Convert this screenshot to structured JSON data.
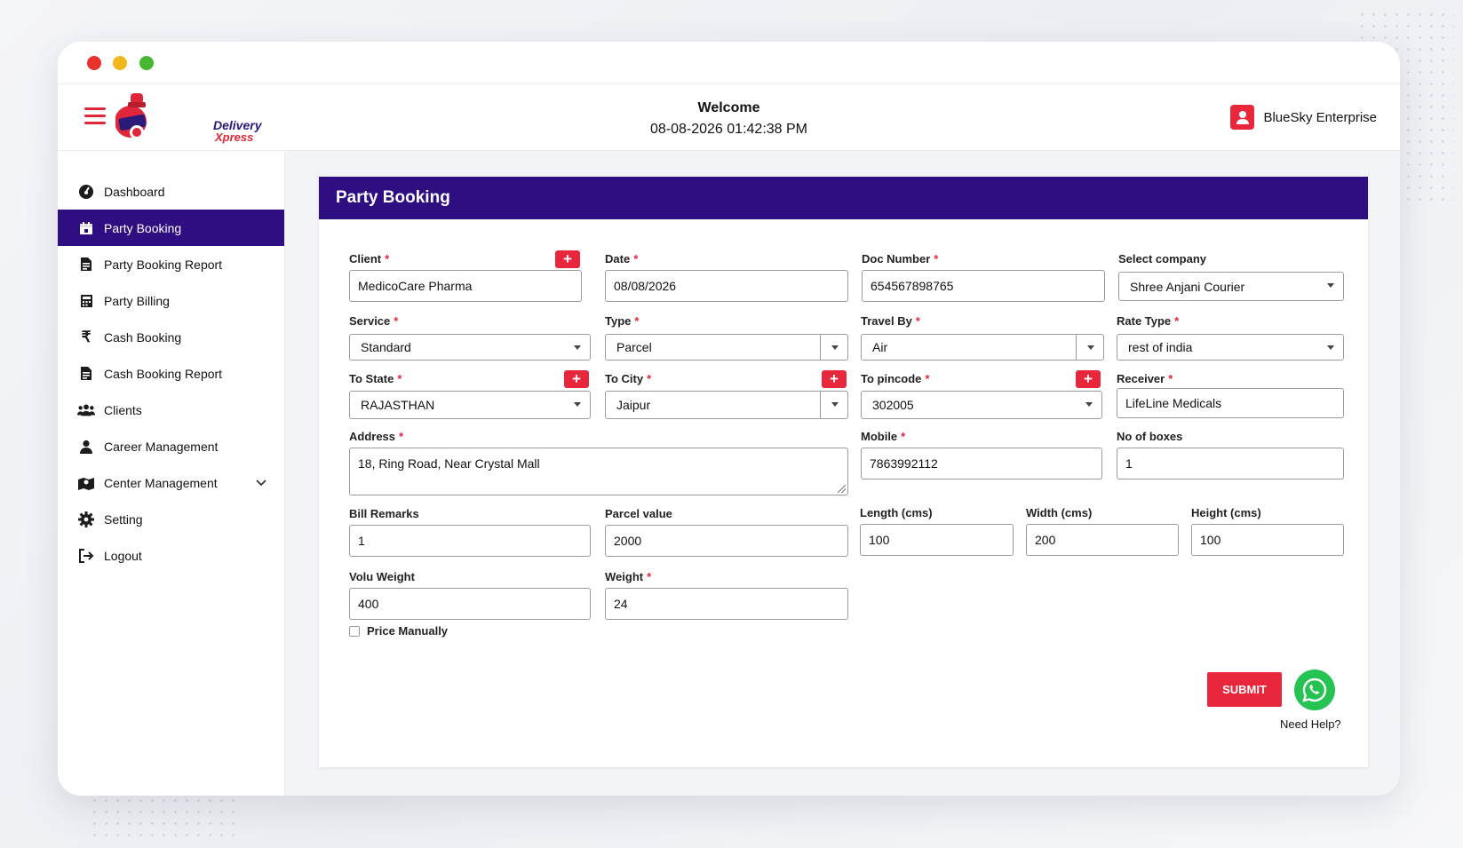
{
  "window_controls": [
    "close",
    "minimize",
    "maximize"
  ],
  "brand": {
    "line1": "Delivery",
    "line2": "Xpress",
    "accent": "#e0263a",
    "primary": "#2e0e80"
  },
  "header": {
    "welcome": "Welcome",
    "datetime": "08-08-2026 01:42:38 PM",
    "company": "BlueSky Enterprise"
  },
  "sidebar": {
    "items": [
      {
        "label": "Dashboard",
        "icon": "dashboard-icon"
      },
      {
        "label": "Party Booking",
        "icon": "calendar-icon",
        "active": true
      },
      {
        "label": "Party Booking Report",
        "icon": "report-icon"
      },
      {
        "label": "Party Billing",
        "icon": "billing-icon"
      },
      {
        "label": "Cash Booking",
        "icon": "rupee-icon"
      },
      {
        "label": "Cash Booking Report",
        "icon": "report-icon"
      },
      {
        "label": "Clients",
        "icon": "users-icon"
      },
      {
        "label": "Career Management",
        "icon": "user-icon"
      },
      {
        "label": "Center Management",
        "icon": "map-icon",
        "expandable": true
      },
      {
        "label": "Setting",
        "icon": "gear-icon"
      },
      {
        "label": "Logout",
        "icon": "logout-icon"
      }
    ]
  },
  "form": {
    "title": "Party Booking",
    "client": {
      "label": "Client",
      "value": "MedicoCare Pharma"
    },
    "date": {
      "label": "Date",
      "value": "08/08/2026"
    },
    "doc_number": {
      "label": "Doc Number",
      "value": "654567898765"
    },
    "select_company": {
      "label": "Select company",
      "value": "Shree Anjani Courier"
    },
    "service": {
      "label": "Service",
      "value": "Standard"
    },
    "type": {
      "label": "Type",
      "value": "Parcel"
    },
    "travel_by": {
      "label": "Travel By",
      "value": "Air"
    },
    "rate_type": {
      "label": "Rate Type",
      "value": "rest of india"
    },
    "to_state": {
      "label": "To State",
      "value": "RAJASTHAN"
    },
    "to_city": {
      "label": "To City",
      "value": "Jaipur"
    },
    "to_pincode": {
      "label": "To pincode",
      "value": "302005"
    },
    "receiver": {
      "label": "Receiver",
      "value": "LifeLine Medicals"
    },
    "address": {
      "label": "Address",
      "value": "18, Ring Road, Near Crystal Mall"
    },
    "mobile": {
      "label": "Mobile",
      "value": "7863992112"
    },
    "no_of_boxes": {
      "label": "No of boxes",
      "value": "1"
    },
    "bill_remarks": {
      "label": "Bill Remarks",
      "value": "1"
    },
    "parcel_value": {
      "label": "Parcel value",
      "value": "2000"
    },
    "length": {
      "label": "Length (cms)",
      "value": "100"
    },
    "width": {
      "label": "Width (cms)",
      "value": "200"
    },
    "height": {
      "label": "Height (cms)",
      "value": "100"
    },
    "volu_weight": {
      "label": "Volu Weight",
      "value": "400"
    },
    "weight": {
      "label": "Weight",
      "value": "24"
    },
    "price_manually": {
      "label": "Price Manually",
      "checked": false
    },
    "required_mark": "*",
    "add_symbol": "+",
    "submit_label": "SUBMIT",
    "help_label": "Need Help?"
  }
}
